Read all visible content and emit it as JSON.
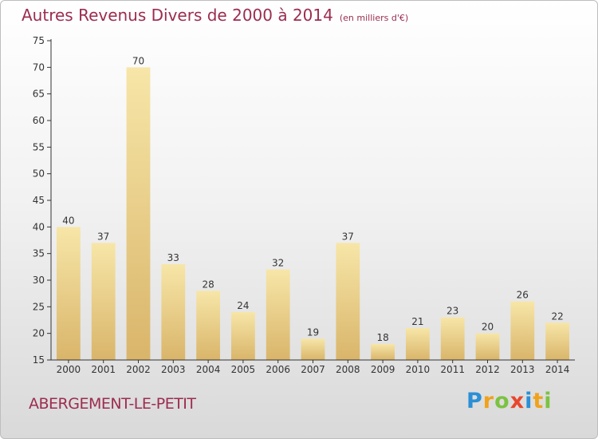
{
  "title": "Autres Revenus Divers de 2000 à 2014",
  "subtitle": "(en milliers d'€)",
  "place": "ABERGEMENT-LE-PETIT",
  "logo": {
    "text": "Proxiti",
    "letters": [
      "P",
      "r",
      "o",
      "x",
      "i",
      "t",
      "i"
    ],
    "colors": [
      "#2a8fd6",
      "#f0a21c",
      "#7cc242",
      "#e8472d",
      "#2a8fd6",
      "#f0a21c",
      "#7cc242"
    ]
  },
  "colors": {
    "title": "#9b2d4f",
    "bar_light": "#f7e6a8",
    "bar_dark": "#d9b56a",
    "axis": "#333333"
  },
  "chart_data": {
    "type": "bar",
    "title": "Autres Revenus Divers de 2000 à 2014",
    "subtitle": "(en milliers d'€)",
    "categories": [
      "2000",
      "2001",
      "2002",
      "2003",
      "2004",
      "2005",
      "2006",
      "2007",
      "2008",
      "2009",
      "2010",
      "2011",
      "2012",
      "2013",
      "2014"
    ],
    "values": [
      40,
      37,
      70,
      33,
      28,
      24,
      32,
      19,
      37,
      18,
      21,
      23,
      20,
      26,
      22
    ],
    "yticks": [
      15,
      20,
      25,
      30,
      35,
      40,
      45,
      50,
      55,
      60,
      65,
      70,
      75
    ],
    "ylim": [
      15,
      75
    ],
    "grid": false,
    "data_labels": true
  }
}
